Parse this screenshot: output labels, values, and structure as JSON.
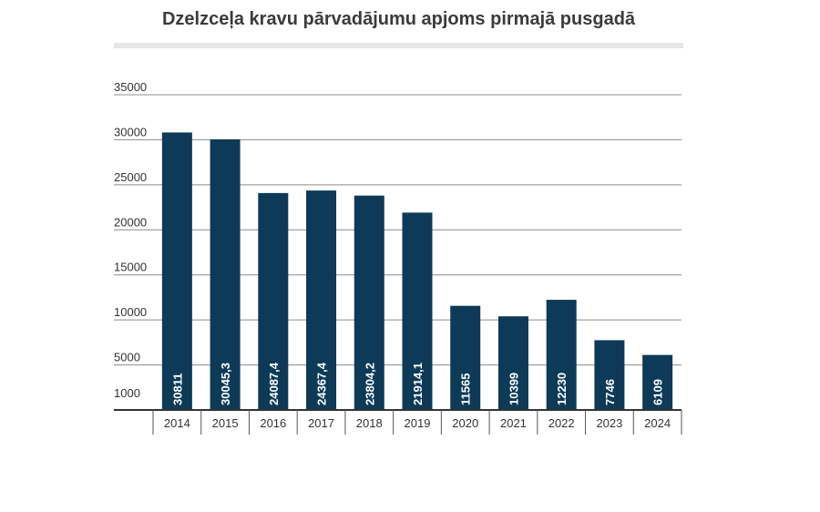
{
  "chart_data": {
    "type": "bar",
    "title": "Dzelzceļa kravu pārvadājumu apjoms pirmajā pusgadā",
    "categories": [
      "2014",
      "2015",
      "2016",
      "2017",
      "2018",
      "2019",
      "2020",
      "2021",
      "2022",
      "2023",
      "2024"
    ],
    "values": [
      30811,
      30045.3,
      24087.4,
      24367.4,
      23804.2,
      21914.1,
      11565,
      10399,
      12230,
      7746,
      6109
    ],
    "value_labels": [
      "30811",
      "30045,3",
      "24087,4",
      "24367,4",
      "23804,2",
      "21914,1",
      "11565",
      "10399",
      "12230",
      "7746",
      "6109"
    ],
    "y_ticks": [
      "35000",
      "30000",
      "25000",
      "20000",
      "15000",
      "10000",
      "5000",
      "1000"
    ],
    "y_tick_values": [
      35000,
      30000,
      25000,
      20000,
      15000,
      10000,
      5000,
      1000
    ],
    "ylim": [
      0,
      35000
    ],
    "grid": true,
    "bar_color": "#0d3a57",
    "xlabel": "",
    "ylabel": ""
  }
}
